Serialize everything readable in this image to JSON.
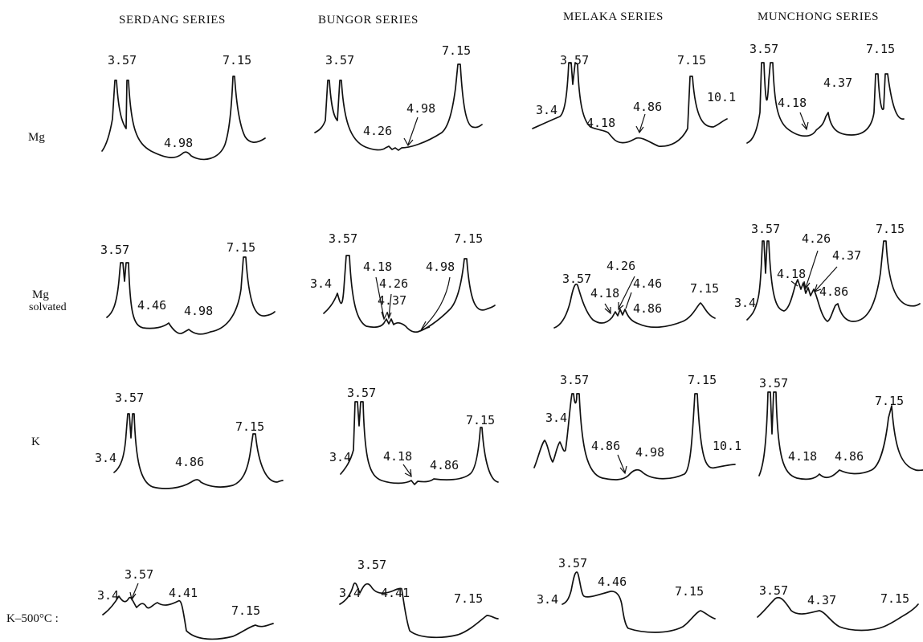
{
  "columns": [
    "SERDANG SERIES",
    "BUNGOR SERIES",
    "MELAKA SERIES",
    "MUNCHONG SERIES"
  ],
  "rows": [
    "Mg",
    "Mg",
    "solvated",
    "K",
    "K–500°C :"
  ],
  "panels": {
    "serdang_mg": [
      "3.57",
      "7.15",
      "4.98"
    ],
    "bungor_mg": [
      "3.57",
      "7.15",
      "4.26",
      "4.98"
    ],
    "melaka_mg": [
      "3.57",
      "7.15",
      "10.1",
      "3.4",
      "4.18",
      "4.86"
    ],
    "munchong_mg": [
      "3.57",
      "7.15",
      "4.37",
      "4.18"
    ],
    "serdang_mgs": [
      "3.57",
      "7.15",
      "4.46",
      "4.98"
    ],
    "bungor_mgs": [
      "3.57",
      "7.15",
      "3.4",
      "4.18",
      "4.98",
      "4.26",
      "4.37"
    ],
    "melaka_mgs": [
      "3.57",
      "4.26",
      "4.18",
      "4.46",
      "4.86",
      "7.15"
    ],
    "munchong_mgs": [
      "3.57",
      "4.26",
      "7.15",
      "4.18",
      "4.37",
      "4.86",
      "3.4"
    ],
    "serdang_k": [
      "3.57",
      "7.15",
      "3.4",
      "4.86"
    ],
    "bungor_k": [
      "3.57",
      "7.15",
      "3.4",
      "4.18",
      "4.86"
    ],
    "melaka_k": [
      "3.57",
      "7.15",
      "3.4",
      "4.86",
      "4.98",
      "10.1"
    ],
    "munchong_k": [
      "3.57",
      "7.15",
      "4.18",
      "4.86"
    ],
    "serdang_k500": [
      "3.57",
      "3.4",
      "4.41",
      "7.15"
    ],
    "bungor_k500": [
      "3.57",
      "3.4",
      "4.41",
      "7.15"
    ],
    "melaka_k500": [
      "3.57",
      "4.46",
      "3.4",
      "7.15"
    ],
    "munchong_k500": [
      "3.57",
      "4.37",
      "7.15"
    ]
  }
}
